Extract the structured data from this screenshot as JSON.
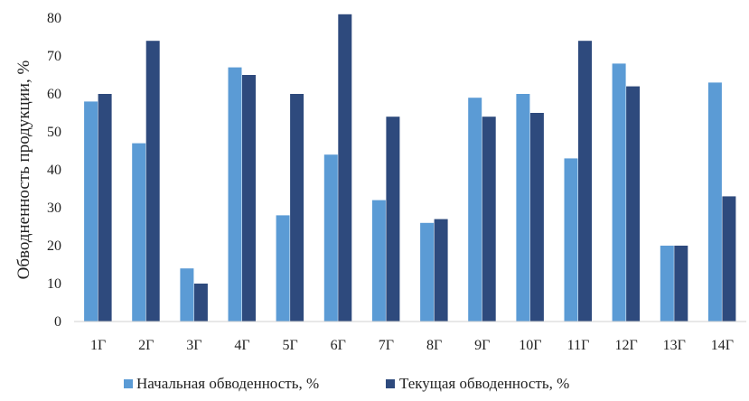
{
  "chart_data": {
    "type": "bar",
    "ylabel": "Обводненность продукции, %",
    "xlabel": "",
    "ylim": [
      0,
      80
    ],
    "yticks": [
      0,
      10,
      20,
      30,
      40,
      50,
      60,
      70,
      80
    ],
    "grid": false,
    "legend_position": "bottom",
    "categories": [
      "1Г",
      "2Г",
      "3Г",
      "4Г",
      "5Г",
      "6Г",
      "7Г",
      "8Г",
      "9Г",
      "10Г",
      "11Г",
      "12Г",
      "13Г",
      "14Г"
    ],
    "series": [
      {
        "name": "Начальная обводенность, %",
        "color": "#5b9bd5",
        "values": [
          58,
          47,
          14,
          67,
          28,
          44,
          32,
          26,
          59,
          60,
          43,
          68,
          20,
          63
        ]
      },
      {
        "name": "Текущая обводенность, %",
        "color": "#2e4a7d",
        "values": [
          60,
          74,
          10,
          65,
          60,
          81,
          54,
          27,
          54,
          55,
          74,
          62,
          20,
          33
        ]
      }
    ]
  }
}
